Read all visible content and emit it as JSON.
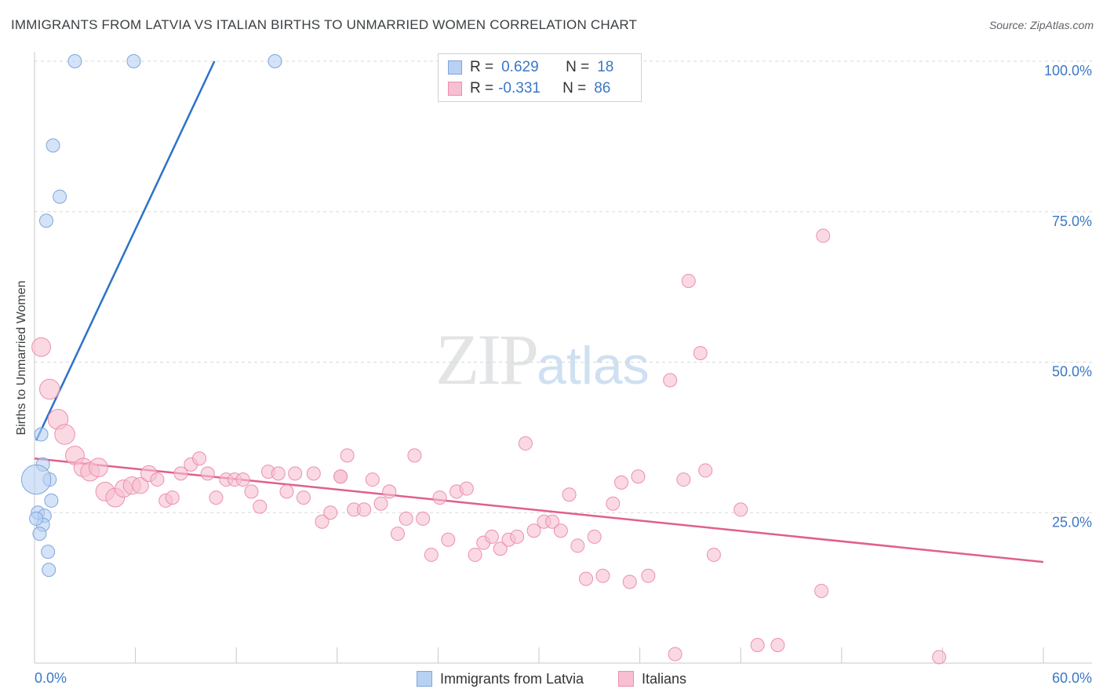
{
  "header": {
    "title": "IMMIGRANTS FROM LATVIA VS ITALIAN BIRTHS TO UNMARRIED WOMEN CORRELATION CHART",
    "source": "Source: ZipAtlas.com"
  },
  "watermark": {
    "zip": "ZIP",
    "atlas": "atlas"
  },
  "legend": {
    "r_label": "R =",
    "n_label": "N =",
    "rows": [
      {
        "r": "0.629",
        "n": "18"
      },
      {
        "r": "-0.331",
        "n": "86"
      }
    ]
  },
  "chart_data": {
    "type": "scatter",
    "title": "IMMIGRANTS FROM LATVIA VS ITALIAN BIRTHS TO UNMARRIED WOMEN CORRELATION CHART",
    "xlabel": "",
    "ylabel": "Births to Unmarried Women",
    "xlim": [
      0,
      60
    ],
    "ylim": [
      0,
      100
    ],
    "x_tick_labels": [
      "0.0%",
      "60.0%"
    ],
    "y_tick_labels": [
      "100.0%",
      "75.0%",
      "50.0%",
      "25.0%"
    ],
    "y_ticks": [
      100,
      75,
      50,
      25
    ],
    "grid": true,
    "legend_position": "top-center",
    "colors": {
      "latvia_fill": "#b8d1f2",
      "latvia_stroke": "#7ea6dc",
      "latvia_line": "#2d72c8",
      "italians_fill": "#f7bfd1",
      "italians_stroke": "#ec8fae",
      "italians_line": "#e05f8f",
      "tick_label": "#3b78c4"
    },
    "series": [
      {
        "name": "Immigrants from Latvia",
        "trend": {
          "x": [
            0.1,
            10.7
          ],
          "y": [
            37,
            100
          ]
        },
        "points": [
          [
            2.4,
            100
          ],
          [
            5.9,
            100
          ],
          [
            14.3,
            100
          ],
          [
            1.1,
            86
          ],
          [
            1.5,
            77.5
          ],
          [
            0.7,
            73.5
          ],
          [
            0.4,
            38
          ],
          [
            0.5,
            33
          ],
          [
            0.9,
            30.5
          ],
          [
            0.1,
            30.5
          ],
          [
            1.0,
            27
          ],
          [
            0.2,
            25
          ],
          [
            0.6,
            24.5
          ],
          [
            0.5,
            23
          ],
          [
            0.3,
            21.5
          ],
          [
            0.8,
            18.5
          ],
          [
            0.85,
            15.5
          ],
          [
            0.1,
            24
          ]
        ],
        "sizes": [
          1,
          1,
          1,
          1,
          1,
          1,
          1,
          1,
          1,
          2.2,
          1,
          1,
          1,
          1,
          1,
          1,
          1,
          1
        ]
      },
      {
        "name": "Italians",
        "trend": {
          "x": [
            0,
            60
          ],
          "y": [
            34,
            16.8
          ]
        },
        "points": [
          [
            0.4,
            52.5
          ],
          [
            0.9,
            45.5
          ],
          [
            1.4,
            40.5
          ],
          [
            1.8,
            38
          ],
          [
            2.4,
            34.5
          ],
          [
            2.9,
            32.5
          ],
          [
            3.3,
            31.8
          ],
          [
            3.8,
            32.5
          ],
          [
            4.2,
            28.5
          ],
          [
            4.8,
            27.5
          ],
          [
            5.3,
            29
          ],
          [
            5.8,
            29.5
          ],
          [
            6.3,
            29.5
          ],
          [
            6.8,
            31.5
          ],
          [
            7.3,
            30.5
          ],
          [
            7.8,
            27
          ],
          [
            8.2,
            27.5
          ],
          [
            8.7,
            31.5
          ],
          [
            9.3,
            33
          ],
          [
            9.8,
            34
          ],
          [
            10.3,
            31.5
          ],
          [
            10.8,
            27.5
          ],
          [
            11.4,
            30.5
          ],
          [
            11.9,
            30.5
          ],
          [
            12.4,
            30.5
          ],
          [
            12.9,
            28.5
          ],
          [
            13.4,
            26
          ],
          [
            13.9,
            31.8
          ],
          [
            14.5,
            31.5
          ],
          [
            15.0,
            28.5
          ],
          [
            15.5,
            31.5
          ],
          [
            16.0,
            27.5
          ],
          [
            16.6,
            31.5
          ],
          [
            17.1,
            23.5
          ],
          [
            17.6,
            25
          ],
          [
            18.2,
            31
          ],
          [
            18.6,
            34.5
          ],
          [
            19.0,
            25.5
          ],
          [
            19.6,
            25.5
          ],
          [
            20.1,
            30.5
          ],
          [
            20.6,
            26.5
          ],
          [
            21.1,
            28.5
          ],
          [
            21.6,
            21.5
          ],
          [
            22.1,
            24
          ],
          [
            22.6,
            34.5
          ],
          [
            23.1,
            24
          ],
          [
            23.6,
            18
          ],
          [
            24.1,
            27.5
          ],
          [
            24.6,
            20.5
          ],
          [
            25.1,
            28.5
          ],
          [
            25.7,
            29
          ],
          [
            26.2,
            18
          ],
          [
            26.7,
            20
          ],
          [
            27.2,
            21
          ],
          [
            27.7,
            19
          ],
          [
            28.2,
            20.5
          ],
          [
            28.7,
            21
          ],
          [
            29.2,
            36.5
          ],
          [
            29.7,
            22
          ],
          [
            30.3,
            23.5
          ],
          [
            30.8,
            23.5
          ],
          [
            31.3,
            22
          ],
          [
            31.8,
            28
          ],
          [
            32.3,
            19.5
          ],
          [
            32.8,
            14
          ],
          [
            33.3,
            21
          ],
          [
            33.8,
            14.5
          ],
          [
            34.4,
            26.5
          ],
          [
            34.9,
            30
          ],
          [
            35.4,
            13.5
          ],
          [
            35.9,
            31
          ],
          [
            36.5,
            14.5
          ],
          [
            37.8,
            47
          ],
          [
            38.1,
            1.5
          ],
          [
            38.6,
            30.5
          ],
          [
            38.9,
            63.5
          ],
          [
            39.6,
            51.5
          ],
          [
            39.9,
            32
          ],
          [
            40.4,
            18
          ],
          [
            42.0,
            25.5
          ],
          [
            43.0,
            3
          ],
          [
            44.2,
            3
          ],
          [
            46.8,
            12
          ],
          [
            46.9,
            71
          ],
          [
            53.8,
            1
          ],
          [
            18.2,
            31
          ]
        ],
        "sizes": [
          1.4,
          1.5,
          1.5,
          1.5,
          1.4,
          1.4,
          1.4,
          1.4,
          1.4,
          1.4,
          1.3,
          1.3,
          1.2,
          1.2,
          1,
          1,
          1,
          1,
          1,
          1,
          1,
          1,
          1,
          1,
          1,
          1,
          1,
          1,
          1,
          1,
          1,
          1,
          1,
          1,
          1,
          1,
          1,
          1,
          1,
          1,
          1,
          1,
          1,
          1,
          1,
          1,
          1,
          1,
          1,
          1,
          1,
          1,
          1,
          1,
          1,
          1,
          1,
          1,
          1,
          1,
          1,
          1,
          1,
          1,
          1,
          1,
          1,
          1,
          1,
          1,
          1,
          1,
          1,
          1,
          1,
          1,
          1,
          1,
          1,
          1,
          1,
          1,
          1,
          1,
          1,
          1
        ]
      }
    ]
  }
}
